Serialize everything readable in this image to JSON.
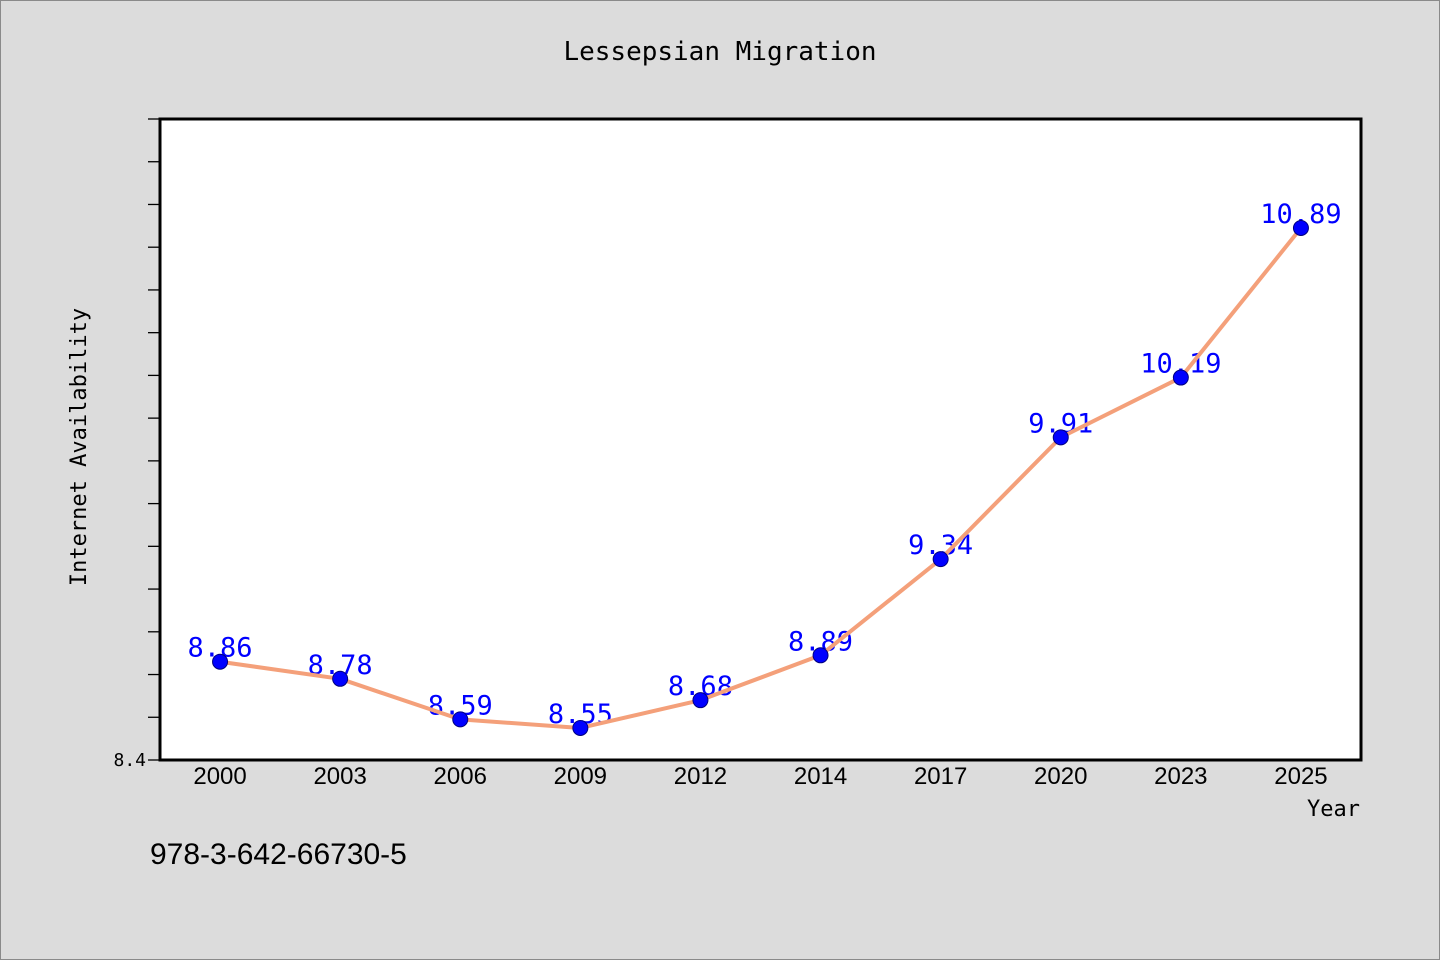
{
  "chart_data": {
    "type": "line",
    "title": "Lessepsian Migration",
    "xlabel": "Year",
    "ylabel": "Internet Availability",
    "categories": [
      "2000",
      "2003",
      "2006",
      "2009",
      "2012",
      "2014",
      "2017",
      "2020",
      "2023",
      "2025"
    ],
    "values": [
      8.86,
      8.78,
      8.59,
      8.55,
      8.68,
      8.89,
      9.34,
      9.91,
      10.19,
      10.89
    ],
    "ylim": [
      8.4,
      11.4
    ],
    "ytick_step": 0.2,
    "ytick_labels": [
      {
        "value": 8.4,
        "label": "8.4"
      }
    ],
    "data_labels_shown": true,
    "grid": false,
    "legend": "none",
    "colors": {
      "line": "#F4A07A",
      "marker": "#0000FF",
      "marker_edge": "#00007F",
      "data_label": "#0000FF",
      "plot_background": "#FFFFFF",
      "page_background": "#DCDCDC"
    }
  },
  "footer": {
    "code": "978-3-642-66730-5"
  }
}
